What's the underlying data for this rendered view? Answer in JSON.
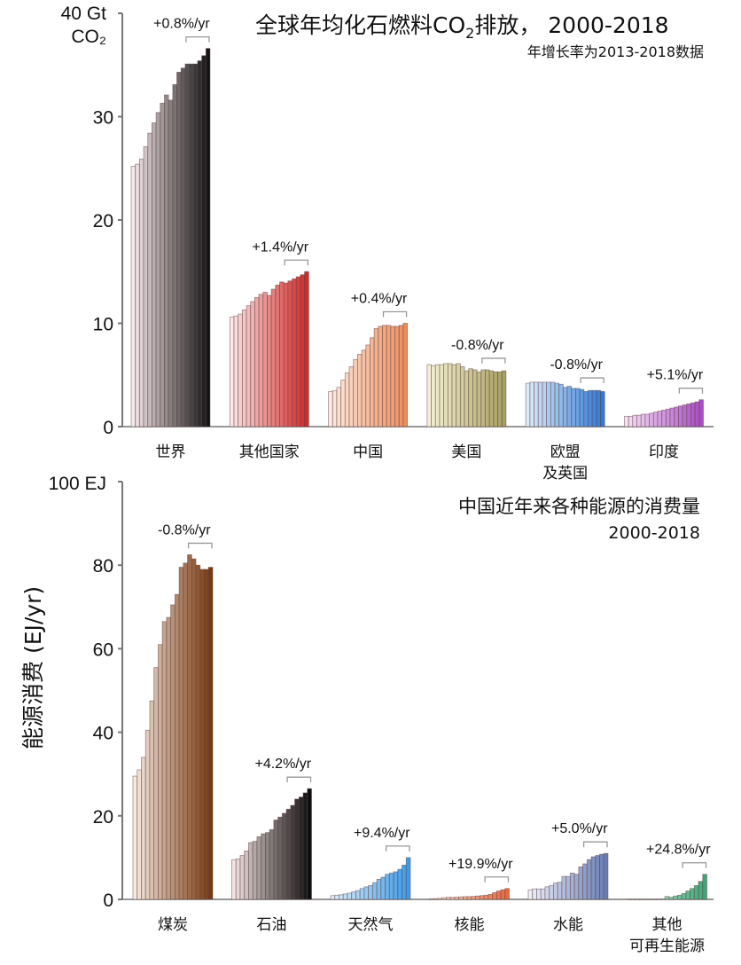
{
  "chart_data": [
    {
      "type": "bar",
      "title": "全球年均化石燃料CO₂排放，2000-2018",
      "title_main": "全球年均化石燃料CO",
      "title_sub2": "2",
      "title_tail": "排放， 2000-2018",
      "subtitle": "年增长率为2013-2018数据",
      "unit_label": [
        "40 Gt",
        "CO₂"
      ],
      "ylim": [
        0,
        40
      ],
      "yticks": [
        "0",
        "10",
        "20",
        "30"
      ],
      "years": "2000-2018",
      "groups": [
        {
          "label": [
            "世界"
          ],
          "rate": "+0.8%/yr",
          "colors": [
            "#f6e9ec",
            "#151515"
          ],
          "values": [
            25.2,
            25.4,
            25.9,
            27.1,
            28.4,
            29.4,
            30.4,
            31.3,
            32.1,
            31.6,
            33.1,
            34.3,
            34.7,
            35.1,
            35.1,
            35.1,
            35.4,
            35.9,
            36.6
          ]
        },
        {
          "label": [
            "其他国家"
          ],
          "rate": "+1.4%/yr",
          "colors": [
            "#fce6e6",
            "#d22a2a"
          ],
          "values": [
            10.6,
            10.7,
            10.9,
            11.3,
            11.7,
            12.1,
            12.5,
            12.8,
            13.0,
            12.7,
            13.3,
            13.7,
            14.0,
            13.9,
            14.1,
            14.3,
            14.5,
            14.7,
            15.0
          ]
        },
        {
          "label": [
            "中国"
          ],
          "rate": "+0.4%/yr",
          "colors": [
            "#fdeae0",
            "#ee8f5e"
          ],
          "values": [
            3.4,
            3.5,
            3.8,
            4.5,
            5.2,
            5.8,
            6.5,
            7.0,
            7.4,
            7.9,
            8.6,
            9.5,
            9.7,
            9.8,
            9.8,
            9.7,
            9.7,
            9.8,
            10.0
          ]
        },
        {
          "label": [
            "美国"
          ],
          "rate": "-0.8%/yr",
          "colors": [
            "#f4f1d4",
            "#a8a062"
          ],
          "values": [
            6.0,
            5.9,
            6.0,
            6.0,
            6.1,
            6.1,
            6.0,
            6.1,
            5.8,
            5.4,
            5.6,
            5.5,
            5.3,
            5.5,
            5.5,
            5.4,
            5.3,
            5.3,
            5.4
          ]
        },
        {
          "label": [
            "欧盟",
            "及英国"
          ],
          "rate": "-0.8%/yr",
          "colors": [
            "#dcebfa",
            "#2f7ad8"
          ],
          "values": [
            4.2,
            4.3,
            4.3,
            4.3,
            4.3,
            4.3,
            4.3,
            4.2,
            4.1,
            3.8,
            3.9,
            3.7,
            3.7,
            3.6,
            3.4,
            3.5,
            3.5,
            3.5,
            3.4
          ]
        },
        {
          "label": [
            "印度"
          ],
          "rate": "+5.1%/yr",
          "colors": [
            "#f6e0f5",
            "#a94cc6"
          ],
          "values": [
            1.0,
            1.0,
            1.1,
            1.1,
            1.2,
            1.2,
            1.3,
            1.4,
            1.5,
            1.6,
            1.7,
            1.8,
            1.9,
            2.0,
            2.1,
            2.2,
            2.3,
            2.4,
            2.6
          ]
        }
      ]
    },
    {
      "type": "bar",
      "title": "中国近年来各种能源的消费量",
      "subtitle": "2000-2018",
      "ylabel": "能源消费 (EJ/yr)",
      "unit_label": [
        "100 EJ"
      ],
      "ylim": [
        0,
        100
      ],
      "yticks": [
        "0",
        "20",
        "40",
        "60",
        "80"
      ],
      "years": "2000-2018",
      "groups": [
        {
          "label": [
            "煤炭"
          ],
          "rate": "-0.8%/yr",
          "colors": [
            "#f6e9df",
            "#7a3a10"
          ],
          "values": [
            29.5,
            31,
            34,
            40.5,
            47.5,
            55.5,
            61,
            66.5,
            67.5,
            70.5,
            73,
            79.5,
            80.5,
            82.5,
            81.5,
            80,
            79,
            79,
            79.5
          ]
        },
        {
          "label": [
            "石油"
          ],
          "rate": "+4.2%/yr",
          "colors": [
            "#f3e3e3",
            "#0e0e0e"
          ],
          "values": [
            9.5,
            9.7,
            10.5,
            11.6,
            13.6,
            13.9,
            15,
            15.7,
            16,
            16.7,
            19,
            19.7,
            20.6,
            21.6,
            22.5,
            24,
            24.5,
            25.5,
            26.5
          ]
        },
        {
          "label": [
            "天然气"
          ],
          "rate": "+9.4%/yr",
          "colors": [
            "#dceefa",
            "#3f9be8"
          ],
          "values": [
            0.9,
            1.0,
            1.1,
            1.3,
            1.5,
            1.8,
            2.1,
            2.6,
            3.0,
            3.3,
            4.0,
            4.8,
            5.3,
            6.0,
            6.3,
            6.6,
            7.2,
            8.2,
            10.0
          ]
        },
        {
          "label": [
            "核能"
          ],
          "rate": "+19.9%/yr",
          "colors": [
            "#fbe3d8",
            "#e86a40"
          ],
          "values": [
            0.16,
            0.17,
            0.25,
            0.4,
            0.5,
            0.5,
            0.55,
            0.6,
            0.65,
            0.66,
            0.7,
            0.8,
            0.9,
            1.0,
            1.2,
            1.6,
            2.0,
            2.3,
            2.6
          ]
        },
        {
          "label": [
            "水能"
          ],
          "rate": "+5.0%/yr",
          "colors": [
            "#eceff9",
            "#6a7fb5"
          ],
          "values": [
            2.3,
            2.5,
            2.5,
            2.5,
            3.0,
            3.3,
            3.9,
            4.1,
            5.5,
            5.5,
            6.3,
            6.0,
            7.8,
            8.5,
            9.5,
            10.2,
            10.5,
            10.8,
            11.0
          ]
        },
        {
          "label": [
            "其他",
            "可再生能源"
          ],
          "rate": "+24.8%/yr",
          "colors": [
            "#dcf2e4",
            "#3ca878"
          ],
          "values": [
            0,
            0,
            0,
            0,
            0,
            0,
            0,
            0.05,
            0.1,
            0.7,
            0.5,
            0.8,
            1.0,
            1.4,
            2.0,
            2.6,
            3.3,
            4.3,
            6.0
          ]
        }
      ]
    }
  ]
}
